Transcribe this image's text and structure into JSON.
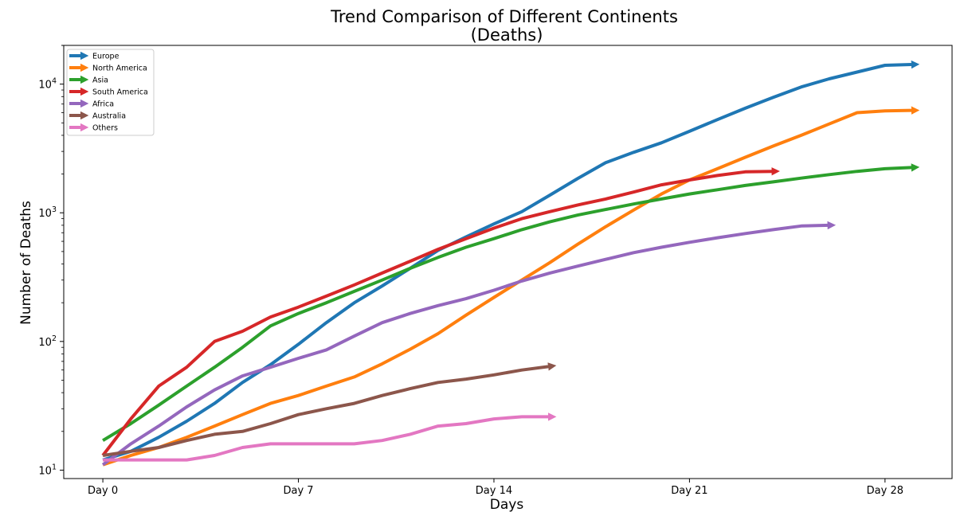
{
  "chart_data": {
    "type": "line",
    "title": "Trend Comparison of Different Continents",
    "subtitle": "(Deaths)",
    "xlabel": "Days",
    "ylabel": "Number of Deaths",
    "y_scale": "log",
    "xlim": [
      -1.4,
      30.4
    ],
    "ylim": [
      8.6,
      20000
    ],
    "x_ticks": [
      {
        "value": 0,
        "label": "Day 0"
      },
      {
        "value": 7,
        "label": "Day 7"
      },
      {
        "value": 14,
        "label": "Day 14"
      },
      {
        "value": 21,
        "label": "Day 21"
      },
      {
        "value": 28,
        "label": "Day 28"
      }
    ],
    "y_ticks": [
      {
        "value": 10,
        "base": "10",
        "exp": "1"
      },
      {
        "value": 100,
        "base": "10",
        "exp": "2"
      },
      {
        "value": 1000,
        "base": "10",
        "exp": "3"
      },
      {
        "value": 10000,
        "base": "10",
        "exp": "4"
      }
    ],
    "grid": false,
    "legend_position": "top-left",
    "series": [
      {
        "name": "Europe",
        "color": "#1f77b4",
        "x": [
          0,
          1,
          2,
          3,
          4,
          5,
          6,
          7,
          8,
          9,
          10,
          11,
          12,
          13,
          14,
          15,
          16,
          17,
          18,
          19,
          20,
          21,
          22,
          23,
          24,
          25,
          26,
          27,
          28,
          29
        ],
        "y": [
          12,
          14,
          18,
          24,
          33,
          48,
          66,
          95,
          140,
          200,
          270,
          370,
          510,
          650,
          820,
          1020,
          1370,
          1850,
          2450,
          2950,
          3500,
          4300,
          5300,
          6500,
          7900,
          9500,
          11000,
          12400,
          14000,
          14200
        ]
      },
      {
        "name": "North America",
        "color": "#ff7f0e",
        "x": [
          0,
          1,
          2,
          3,
          4,
          5,
          6,
          7,
          8,
          9,
          10,
          11,
          12,
          13,
          14,
          15,
          16,
          17,
          18,
          19,
          20,
          21,
          22,
          23,
          24,
          25,
          26,
          27,
          28,
          29
        ],
        "y": [
          11,
          13,
          15,
          18,
          22,
          27,
          33,
          38,
          45,
          53,
          67,
          87,
          115,
          160,
          220,
          300,
          410,
          570,
          780,
          1050,
          1400,
          1800,
          2200,
          2700,
          3300,
          4000,
          4900,
          6000,
          6200,
          6250
        ]
      },
      {
        "name": "Asia",
        "color": "#2ca02c",
        "x": [
          0,
          1,
          2,
          3,
          4,
          5,
          6,
          7,
          8,
          9,
          10,
          11,
          12,
          13,
          14,
          15,
          16,
          17,
          18,
          19,
          20,
          21,
          22,
          23,
          24,
          25,
          26,
          27,
          28,
          29
        ],
        "y": [
          17,
          23,
          32,
          45,
          63,
          90,
          132,
          165,
          200,
          245,
          300,
          370,
          450,
          540,
          630,
          740,
          850,
          960,
          1060,
          1170,
          1280,
          1400,
          1510,
          1630,
          1740,
          1860,
          1980,
          2100,
          2200,
          2250
        ]
      },
      {
        "name": "South America",
        "color": "#d62728",
        "x": [
          0,
          1,
          2,
          3,
          4,
          5,
          6,
          7,
          8,
          9,
          10,
          11,
          12,
          13,
          14,
          15,
          16,
          17,
          18,
          19,
          20,
          21,
          22,
          23,
          24
        ],
        "y": [
          13,
          25,
          45,
          63,
          100,
          120,
          155,
          185,
          225,
          275,
          340,
          420,
          520,
          630,
          760,
          900,
          1020,
          1150,
          1280,
          1450,
          1650,
          1800,
          1950,
          2080,
          2100
        ]
      },
      {
        "name": "Africa",
        "color": "#9467bd",
        "x": [
          0,
          1,
          2,
          3,
          4,
          5,
          6,
          7,
          8,
          9,
          10,
          11,
          12,
          13,
          14,
          15,
          16,
          17,
          18,
          19,
          20,
          21,
          22,
          23,
          24,
          25,
          26
        ],
        "y": [
          11,
          16,
          22,
          31,
          42,
          54,
          63,
          74,
          86,
          110,
          140,
          165,
          190,
          215,
          250,
          295,
          340,
          385,
          435,
          490,
          540,
          590,
          640,
          690,
          740,
          790,
          800
        ]
      },
      {
        "name": "Australia",
        "color": "#8c564b",
        "x": [
          0,
          1,
          2,
          3,
          4,
          5,
          6,
          7,
          8,
          9,
          10,
          11,
          12,
          13,
          14,
          15,
          16
        ],
        "y": [
          13,
          14,
          15,
          17,
          19,
          20,
          23,
          27,
          30,
          33,
          38,
          43,
          48,
          51,
          55,
          60,
          64
        ]
      },
      {
        "name": "Others",
        "color": "#e377c2",
        "x": [
          0,
          1,
          2,
          3,
          4,
          5,
          6,
          7,
          8,
          9,
          10,
          11,
          12,
          13,
          14,
          15,
          16
        ],
        "y": [
          12,
          12,
          12,
          12,
          13,
          15,
          16,
          16,
          16,
          16,
          17,
          19,
          22,
          23,
          25,
          26,
          26
        ]
      }
    ]
  }
}
